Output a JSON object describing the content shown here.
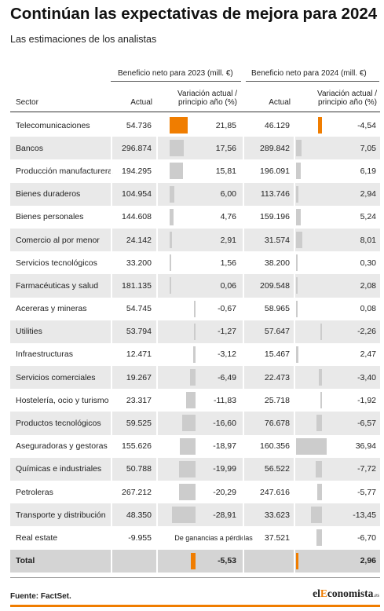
{
  "title": "Continúan las expectativas de mejora para 2024",
  "subtitle": "Las estimaciones de los analistas",
  "colors": {
    "accent": "#f07d00",
    "bar": "#cccccc",
    "shade": "#e9e9e9",
    "total_shade": "#d4d4d4"
  },
  "header": {
    "group_2023": "Beneficio neto para 2023 (mill. €)",
    "group_2024": "Beneficio neto para 2024 (mill. €)",
    "sector": "Sector",
    "actual": "Actual",
    "variation_line1": "Variación actual /",
    "variation_line2": "principio año (%)"
  },
  "chart_data": {
    "type": "table",
    "columns": [
      "Sector",
      "Actual",
      "Variación actual / principio año (%)",
      "Actual",
      "Variación actual / principio año (%)"
    ],
    "rows": [
      {
        "sector": "Telecomunicaciones",
        "actual_2023": "54.736",
        "var_2023": 21.85,
        "var_2023_label": "21,85",
        "actual_2024": "46.129",
        "var_2024": -4.54,
        "var_2024_label": "-4,54"
      },
      {
        "sector": "Bancos",
        "actual_2023": "296.874",
        "var_2023": 17.56,
        "var_2023_label": "17,56",
        "actual_2024": "289.842",
        "var_2024": 7.05,
        "var_2024_label": "7,05"
      },
      {
        "sector": "Producción manufacturera",
        "actual_2023": "194.295",
        "var_2023": 15.81,
        "var_2023_label": "15,81",
        "actual_2024": "196.091",
        "var_2024": 6.19,
        "var_2024_label": "6,19"
      },
      {
        "sector": "Bienes duraderos",
        "actual_2023": "104.954",
        "var_2023": 6.0,
        "var_2023_label": "6,00",
        "actual_2024": "113.746",
        "var_2024": 2.94,
        "var_2024_label": "2,94"
      },
      {
        "sector": "Bienes personales",
        "actual_2023": "144.608",
        "var_2023": 4.76,
        "var_2023_label": "4,76",
        "actual_2024": "159.196",
        "var_2024": 5.24,
        "var_2024_label": "5,24"
      },
      {
        "sector": "Comercio al por menor",
        "actual_2023": "24.142",
        "var_2023": 2.91,
        "var_2023_label": "2,91",
        "actual_2024": "31.574",
        "var_2024": 8.01,
        "var_2024_label": "8,01"
      },
      {
        "sector": "Servicios tecnológicos",
        "actual_2023": "33.200",
        "var_2023": 1.56,
        "var_2023_label": "1,56",
        "actual_2024": "38.200",
        "var_2024": 0.3,
        "var_2024_label": "0,30"
      },
      {
        "sector": "Farmacéuticas y salud",
        "actual_2023": "181.135",
        "var_2023": 0.06,
        "var_2023_label": "0,06",
        "actual_2024": "209.548",
        "var_2024": 2.08,
        "var_2024_label": "2,08"
      },
      {
        "sector": "Acereras y mineras",
        "actual_2023": "54.745",
        "var_2023": -0.67,
        "var_2023_label": "-0,67",
        "actual_2024": "58.965",
        "var_2024": 0.08,
        "var_2024_label": "0,08"
      },
      {
        "sector": "Utilities",
        "actual_2023": "53.794",
        "var_2023": -1.27,
        "var_2023_label": "-1,27",
        "actual_2024": "57.647",
        "var_2024": -2.26,
        "var_2024_label": "-2,26"
      },
      {
        "sector": "Infraestructuras",
        "actual_2023": "12.471",
        "var_2023": -3.12,
        "var_2023_label": "-3,12",
        "actual_2024": "15.467",
        "var_2024": 2.47,
        "var_2024_label": "2,47"
      },
      {
        "sector": "Servicios comerciales",
        "actual_2023": "19.267",
        "var_2023": -6.49,
        "var_2023_label": "-6,49",
        "actual_2024": "22.473",
        "var_2024": -3.4,
        "var_2024_label": "-3,40"
      },
      {
        "sector": "Hostelería, ocio y turismo",
        "actual_2023": "23.317",
        "var_2023": -11.83,
        "var_2023_label": "-11,83",
        "actual_2024": "25.718",
        "var_2024": -1.92,
        "var_2024_label": "-1,92"
      },
      {
        "sector": "Productos tecnológicos",
        "actual_2023": "59.525",
        "var_2023": -16.6,
        "var_2023_label": "-16,60",
        "actual_2024": "76.678",
        "var_2024": -6.57,
        "var_2024_label": "-6,57"
      },
      {
        "sector": "Aseguradoras y gestoras",
        "actual_2023": "155.626",
        "var_2023": -18.97,
        "var_2023_label": "-18,97",
        "actual_2024": "160.356",
        "var_2024": 36.94,
        "var_2024_label": "36,94"
      },
      {
        "sector": "Químicas e industriales",
        "actual_2023": "50.788",
        "var_2023": -19.99,
        "var_2023_label": "-19,99",
        "actual_2024": "56.522",
        "var_2024": -7.72,
        "var_2024_label": "-7,72"
      },
      {
        "sector": "Petroleras",
        "actual_2023": "267.212",
        "var_2023": -20.29,
        "var_2023_label": "-20,29",
        "actual_2024": "247.616",
        "var_2024": -5.77,
        "var_2024_label": "-5,77"
      },
      {
        "sector": "Transporte y distribución",
        "actual_2023": "48.350",
        "var_2023": -28.91,
        "var_2023_label": "-28,91",
        "actual_2024": "33.623",
        "var_2024": -13.45,
        "var_2024_label": "-13,45"
      },
      {
        "sector": "Real estate",
        "actual_2023": "-9.955",
        "var_2023": null,
        "var_2023_label": "",
        "note_2023": "De ganancias a pérdidas",
        "actual_2024": "37.521",
        "var_2024": -6.7,
        "var_2024_label": "-6,70"
      }
    ],
    "total": {
      "sector": "Total",
      "actual_2023": "",
      "var_2023": -5.53,
      "var_2023_label": "-5,53",
      "actual_2024": "",
      "var_2024": 2.96,
      "var_2024_label": "2,96"
    },
    "highlighted_rows": [
      "Telecomunicaciones",
      "Total"
    ]
  },
  "footer": {
    "source": "Fuente: FactSet.",
    "brand_prefix": "el",
    "brand_highlight": "E",
    "brand_rest": "conomista",
    "brand_tld": ".es"
  }
}
